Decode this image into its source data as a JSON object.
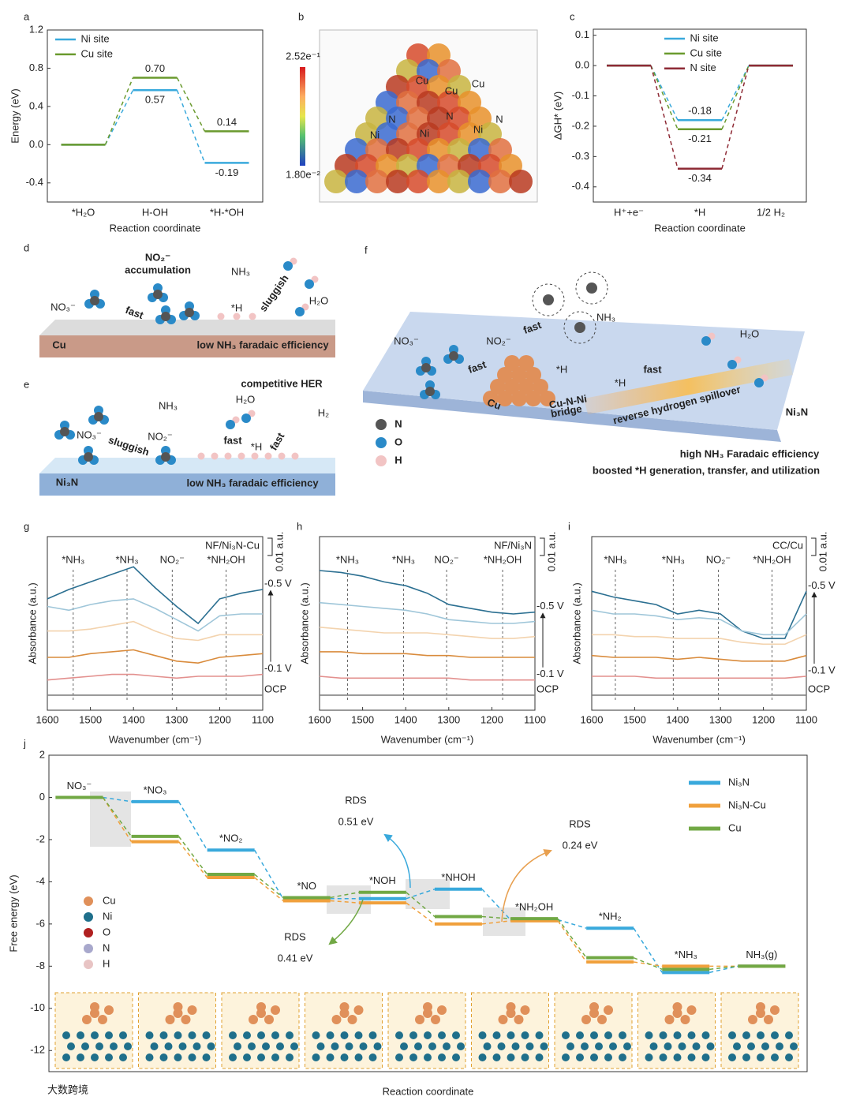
{
  "chart_data": [
    {
      "type": "energy_profile",
      "panel": "a",
      "ylabel": "Energy (eV)",
      "xlabel": "Reaction coordinate",
      "categories": [
        "*H₂O",
        "H-OH",
        "*H-*OH"
      ],
      "series": [
        {
          "name": "Ni  site",
          "color": "#39a9dc",
          "values": [
            0,
            0.57,
            -0.19
          ],
          "value_labels": [
            null,
            "0.57",
            "-0.19"
          ]
        },
        {
          "name": "Cu site",
          "color": "#6a9a2e",
          "values": [
            0,
            0.7,
            0.14
          ],
          "value_labels": [
            null,
            "0.70",
            "0.14"
          ]
        }
      ],
      "ylim": [
        -0.6,
        1.2
      ],
      "yticks": [
        -0.4,
        {
          "value": 0,
          "label": "0.0"
        },
        0.4,
        0.8,
        1.2
      ],
      "legend": "upper left"
    },
    {
      "type": "energy_profile",
      "panel": "c",
      "ylabel": "ΔGH* (eV)",
      "xlabel": "Reaction coordinate",
      "categories": [
        "H⁺+e⁻",
        "*H",
        "1/2 H₂"
      ],
      "series": [
        {
          "name": "Ni  site",
          "color": "#39a9dc",
          "values": [
            0,
            -0.18,
            0
          ],
          "value_labels": [
            null,
            "-0.18",
            null
          ]
        },
        {
          "name": "Cu site",
          "color": "#6a9a2e",
          "values": [
            0,
            -0.21,
            0
          ],
          "value_labels": [
            null,
            "-0.21",
            null
          ]
        },
        {
          "name": "N  site",
          "color": "#8e2a35",
          "values": [
            0,
            -0.34,
            0
          ],
          "value_labels": [
            null,
            "-0.34",
            null
          ]
        }
      ],
      "ylim": [
        -0.45,
        0.12
      ],
      "yticks": [
        0.1,
        {
          "value": 0,
          "label": "0.0"
        },
        -0.1,
        -0.2,
        -0.3,
        -0.4
      ],
      "legend": "upper center"
    },
    {
      "type": "line",
      "panel": "g",
      "sample": "NF/Ni₃N-Cu",
      "xlabel": "Wavenumber (cm⁻¹)",
      "ylabel": "Absorbance (a.u.)",
      "x": [
        1600,
        1550,
        1500,
        1450,
        1400,
        1350,
        1300,
        1250,
        1200,
        1150,
        1100
      ],
      "xlim": [
        1600,
        1100
      ],
      "xticks": [
        1600,
        1500,
        1400,
        1300,
        1200,
        1100
      ],
      "ylim": [
        -0.008,
        0.084
      ],
      "scale_bar": {
        "value": 0.01,
        "label": "0.01 a.u."
      },
      "markers": [
        {
          "label": "*NH₃",
          "x": 1540
        },
        {
          "label": "*NH₃",
          "x": 1415
        },
        {
          "label": "NO₂⁻",
          "x": 1310
        },
        {
          "label": "*NH₂OH",
          "x": 1185
        }
      ],
      "series": [
        {
          "name": "-0.5 V",
          "color": "#2b6f91",
          "values": [
            0.051,
            0.056,
            0.06,
            0.064,
            0.068,
            0.057,
            0.047,
            0.038,
            0.051,
            0.054,
            0.056
          ]
        },
        {
          "color": "#9fc6d9",
          "values": [
            0.047,
            0.045,
            0.048,
            0.05,
            0.051,
            0.046,
            0.04,
            0.034,
            0.042,
            0.043,
            0.043
          ]
        },
        {
          "color": "#f3d3ae",
          "values": [
            0.034,
            0.034,
            0.035,
            0.037,
            0.039,
            0.034,
            0.03,
            0.029,
            0.032,
            0.032,
            0.032
          ]
        },
        {
          "color": "#d98b3c",
          "values": [
            0.02,
            0.02,
            0.022,
            0.023,
            0.024,
            0.021,
            0.018,
            0.017,
            0.02,
            0.021,
            0.022
          ]
        },
        {
          "name": "-0.1 V",
          "color": "#e3908e",
          "values": [
            0.008,
            0.009,
            0.01,
            0.011,
            0.011,
            0.01,
            0.009,
            0.01,
            0.01,
            0.01,
            0.011
          ]
        },
        {
          "name": "OCP",
          "color": "#7f7f7f",
          "values": [
            0,
            0,
            0,
            0,
            0,
            0,
            0,
            0,
            0,
            0,
            0
          ]
        }
      ]
    },
    {
      "type": "line",
      "panel": "h",
      "sample": "NF/Ni₃N",
      "xlabel": "Wavenumber (cm⁻¹)",
      "ylabel": "Absorbance (a.u.)",
      "x": [
        1600,
        1550,
        1500,
        1450,
        1400,
        1350,
        1300,
        1250,
        1200,
        1150,
        1100
      ],
      "xlim": [
        1600,
        1100
      ],
      "xticks": [
        1600,
        1500,
        1400,
        1300,
        1200,
        1100
      ],
      "ylim": [
        -0.008,
        0.084
      ],
      "scale_bar": {
        "value": 0.01,
        "label": "0.01 a.u."
      },
      "markers": [
        {
          "label": "*NH₃",
          "x": 1535
        },
        {
          "label": "*NH₃",
          "x": 1405
        },
        {
          "label": "NO₂⁻",
          "x": 1305
        },
        {
          "label": "*NH₂OH",
          "x": 1175
        }
      ],
      "series": [
        {
          "name": "-0.5 V",
          "color": "#2b6f91",
          "values": [
            0.066,
            0.065,
            0.063,
            0.06,
            0.058,
            0.054,
            0.048,
            0.046,
            0.044,
            0.043,
            0.044
          ]
        },
        {
          "color": "#9fc6d9",
          "values": [
            0.049,
            0.048,
            0.047,
            0.046,
            0.045,
            0.043,
            0.04,
            0.039,
            0.038,
            0.038,
            0.039
          ]
        },
        {
          "color": "#f3d3ae",
          "values": [
            0.036,
            0.035,
            0.034,
            0.033,
            0.033,
            0.033,
            0.032,
            0.031,
            0.03,
            0.03,
            0.031
          ]
        },
        {
          "color": "#d98b3c",
          "values": [
            0.023,
            0.023,
            0.022,
            0.022,
            0.022,
            0.021,
            0.021,
            0.02,
            0.02,
            0.02,
            0.02
          ]
        },
        {
          "name": "-0.1 V",
          "color": "#e3908e",
          "values": [
            0.01,
            0.009,
            0.009,
            0.009,
            0.009,
            0.009,
            0.009,
            0.008,
            0.008,
            0.008,
            0.008
          ]
        },
        {
          "name": "OCP",
          "color": "#7f7f7f",
          "values": [
            0,
            0,
            0,
            0,
            0,
            0,
            0,
            0,
            0,
            0,
            0
          ]
        }
      ]
    },
    {
      "type": "line",
      "panel": "i",
      "sample": "CC/Cu",
      "xlabel": "Wavenumber (cm⁻¹)",
      "ylabel": "Absorbance (a.u.)",
      "x": [
        1600,
        1550,
        1500,
        1450,
        1400,
        1350,
        1300,
        1250,
        1200,
        1150,
        1100
      ],
      "xlim": [
        1600,
        1100
      ],
      "xticks": [
        1600,
        1500,
        1400,
        1300,
        1200,
        1100
      ],
      "ylim": [
        -0.008,
        0.084
      ],
      "scale_bar": {
        "value": 0.01,
        "label": "0.01 a.u."
      },
      "markers": [
        {
          "label": "*NH₃",
          "x": 1545
        },
        {
          "label": "*NH₃",
          "x": 1410
        },
        {
          "label": "NO₂⁻",
          "x": 1305
        },
        {
          "label": "*NH₂OH",
          "x": 1180
        }
      ],
      "series": [
        {
          "name": "-0.5 V",
          "color": "#2b6f91",
          "values": [
            0.055,
            0.052,
            0.05,
            0.048,
            0.043,
            0.045,
            0.043,
            0.034,
            0.03,
            0.03,
            0.055
          ]
        },
        {
          "color": "#9fc6d9",
          "values": [
            0.045,
            0.043,
            0.043,
            0.042,
            0.04,
            0.041,
            0.04,
            0.034,
            0.032,
            0.032,
            0.043
          ]
        },
        {
          "color": "#f3d3ae",
          "values": [
            0.032,
            0.032,
            0.031,
            0.031,
            0.03,
            0.03,
            0.03,
            0.028,
            0.027,
            0.027,
            0.032
          ]
        },
        {
          "color": "#d98b3c",
          "values": [
            0.021,
            0.02,
            0.02,
            0.02,
            0.019,
            0.02,
            0.019,
            0.018,
            0.018,
            0.018,
            0.021
          ]
        },
        {
          "name": "-0.1 V",
          "color": "#e3908e",
          "values": [
            0.01,
            0.01,
            0.01,
            0.009,
            0.009,
            0.009,
            0.009,
            0.009,
            0.009,
            0.009,
            0.01
          ]
        },
        {
          "name": "OCP",
          "color": "#7f7f7f",
          "values": [
            0,
            0,
            0,
            0,
            0,
            0,
            0,
            0,
            0,
            0,
            0
          ]
        }
      ]
    },
    {
      "type": "energy_profile",
      "panel": "j",
      "ylabel": "Free energy (eV)",
      "xlabel": "Reaction coordinate",
      "categories": [
        "NO₃⁻",
        "*NO₃",
        "*NO₂",
        "*NO",
        "*NOH",
        "*NHOH",
        "*NH₂OH",
        "*NH₂",
        "*NH₃",
        "NH₃(g)"
      ],
      "series": [
        {
          "name": "Ni₃N",
          "color": "#39a9dc",
          "values": [
            0,
            -0.2,
            -2.5,
            -4.8,
            -4.8,
            -4.35,
            -5.8,
            -6.2,
            -8.3,
            -8.0
          ]
        },
        {
          "name": "Ni₃N-Cu",
          "color": "#f0a03c",
          "values": [
            0,
            -2.1,
            -3.8,
            -4.9,
            -5.0,
            -6.0,
            -5.85,
            -7.8,
            -8.0,
            -8.0
          ]
        },
        {
          "name": "Cu",
          "color": "#71a844",
          "values": [
            0,
            -1.85,
            -3.65,
            -4.75,
            -4.5,
            -5.65,
            -5.75,
            -7.6,
            -8.15,
            -8.0
          ]
        }
      ],
      "ylim": [
        -13,
        2
      ],
      "yticks": [
        2,
        0,
        -2,
        -4,
        -6,
        -8,
        -10,
        -12
      ],
      "legend": "upper right",
      "annotations": [
        {
          "title": "RDS",
          "label": "0.51 eV",
          "color": "#39a9dc"
        },
        {
          "title": "RDS",
          "label": "0.24 eV",
          "color": "#e8a050"
        },
        {
          "title": "RDS",
          "label": "0.41 eV",
          "color": "#71a844"
        }
      ],
      "atom_legend": [
        {
          "name": "Cu",
          "color": "#e0905a"
        },
        {
          "name": "Ni",
          "color": "#1f6f8b"
        },
        {
          "name": "O",
          "color": "#b02020"
        },
        {
          "name": "N",
          "color": "#a8a8cc"
        },
        {
          "name": "H",
          "color": "#e8c4c4"
        }
      ]
    }
  ],
  "illustrations": {
    "b": {
      "panel": "b",
      "colorbar_max": "2.52e⁻¹",
      "colorbar_min": "1.80e⁻²",
      "labels": [
        "Cu",
        "Cu",
        "Cu",
        "N",
        "N",
        "N",
        "Ni",
        "Ni",
        "Ni"
      ]
    },
    "d": {
      "panel": "d",
      "labels": [
        "NO₂⁻",
        "accumulation",
        "NH₃",
        "NO₃⁻",
        "fast",
        "*H",
        "sluggish",
        "H₂O",
        "Cu",
        "low NH₃ faradaic efficiency"
      ]
    },
    "e": {
      "panel": "e",
      "labels": [
        "competitive HER",
        "NH₃",
        "H₂O",
        "H₂",
        "NO₃⁻",
        "sluggish",
        "NO₂⁻",
        "fast",
        "*H",
        "fast",
        "Ni₃N",
        "low NH₃ faradaic efficiency"
      ]
    },
    "f": {
      "panel": "f",
      "labels": [
        "NO₃⁻",
        "fast",
        "NO₂⁻",
        "fast",
        "NH₃",
        "*H",
        "*H",
        "fast",
        "H₂O",
        "Cu",
        "Cu-N-Ni",
        "bridge",
        "reverse hydrogen spillover",
        "Ni₃N",
        "N",
        "O",
        "H",
        "high NH₃ Faradaic efficiency",
        "boosted *H generation, transfer, and utilization"
      ]
    }
  },
  "watermark": "大数跨境"
}
